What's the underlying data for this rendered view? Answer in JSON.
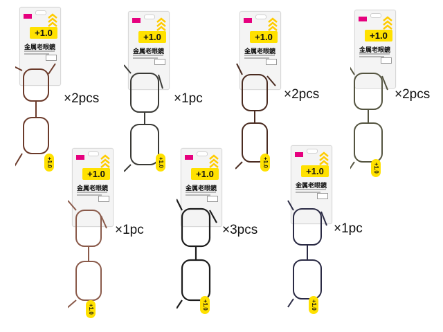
{
  "products": [
    {
      "power": "+1.0",
      "name": "金属老眼鏡",
      "quantity": "×2pcs",
      "frame_color": "#6b3a2a"
    },
    {
      "power": "+1.0",
      "name": "金属老眼鏡",
      "quantity": "×1pc",
      "frame_color": "#3a3a36"
    },
    {
      "power": "+1.0",
      "name": "金属老眼鏡",
      "quantity": "×2pcs",
      "frame_color": "#4a2b20"
    },
    {
      "power": "+1.0",
      "name": "金属老眼鏡",
      "quantity": "×2pcs",
      "frame_color": "#545440"
    },
    {
      "power": "+1.0",
      "name": "金属老眼鏡",
      "quantity": "×1pc",
      "frame_color": "#8a5a4a"
    },
    {
      "power": "+1.0",
      "name": "金属老眼鏡",
      "quantity": "×3pcs",
      "frame_color": "#1c1c1c"
    },
    {
      "power": "+1.0",
      "name": "金属老眼鏡",
      "quantity": "×1pc",
      "frame_color": "#2a2a44"
    }
  ],
  "lens_sticker": "+1.0",
  "colors": {
    "badge_yellow": "#ffe100",
    "brand_pink": "#e6007e",
    "card_bg": "#f4f4f4"
  }
}
